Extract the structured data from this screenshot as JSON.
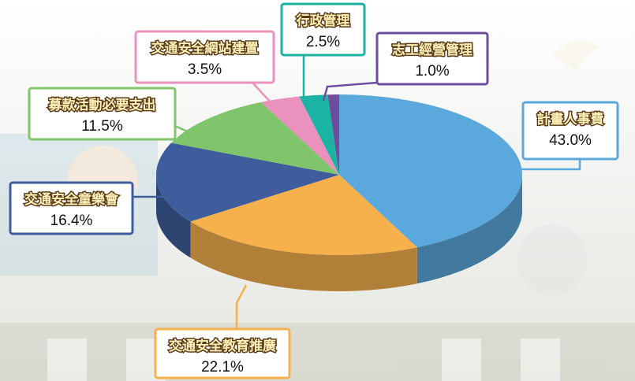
{
  "chart_data": {
    "type": "pie",
    "categories": [
      "計畫人事費",
      "交通安全教育推廣",
      "交通安全童樂會",
      "募款活動必要支出",
      "交通安全網站建置",
      "行政管理",
      "志工經營管理"
    ],
    "values": [
      43.0,
      22.1,
      16.4,
      11.5,
      3.5,
      2.5,
      1.0
    ],
    "value_labels": [
      "43.0%",
      "22.1%",
      "16.4%",
      "11.5%",
      "3.5%",
      "2.5%",
      "1.0%"
    ],
    "colors": [
      "#5ba8dc",
      "#f6b04c",
      "#3f5d9c",
      "#80c46b",
      "#ea91bd",
      "#1bb3a1",
      "#6c4d9e"
    ]
  }
}
